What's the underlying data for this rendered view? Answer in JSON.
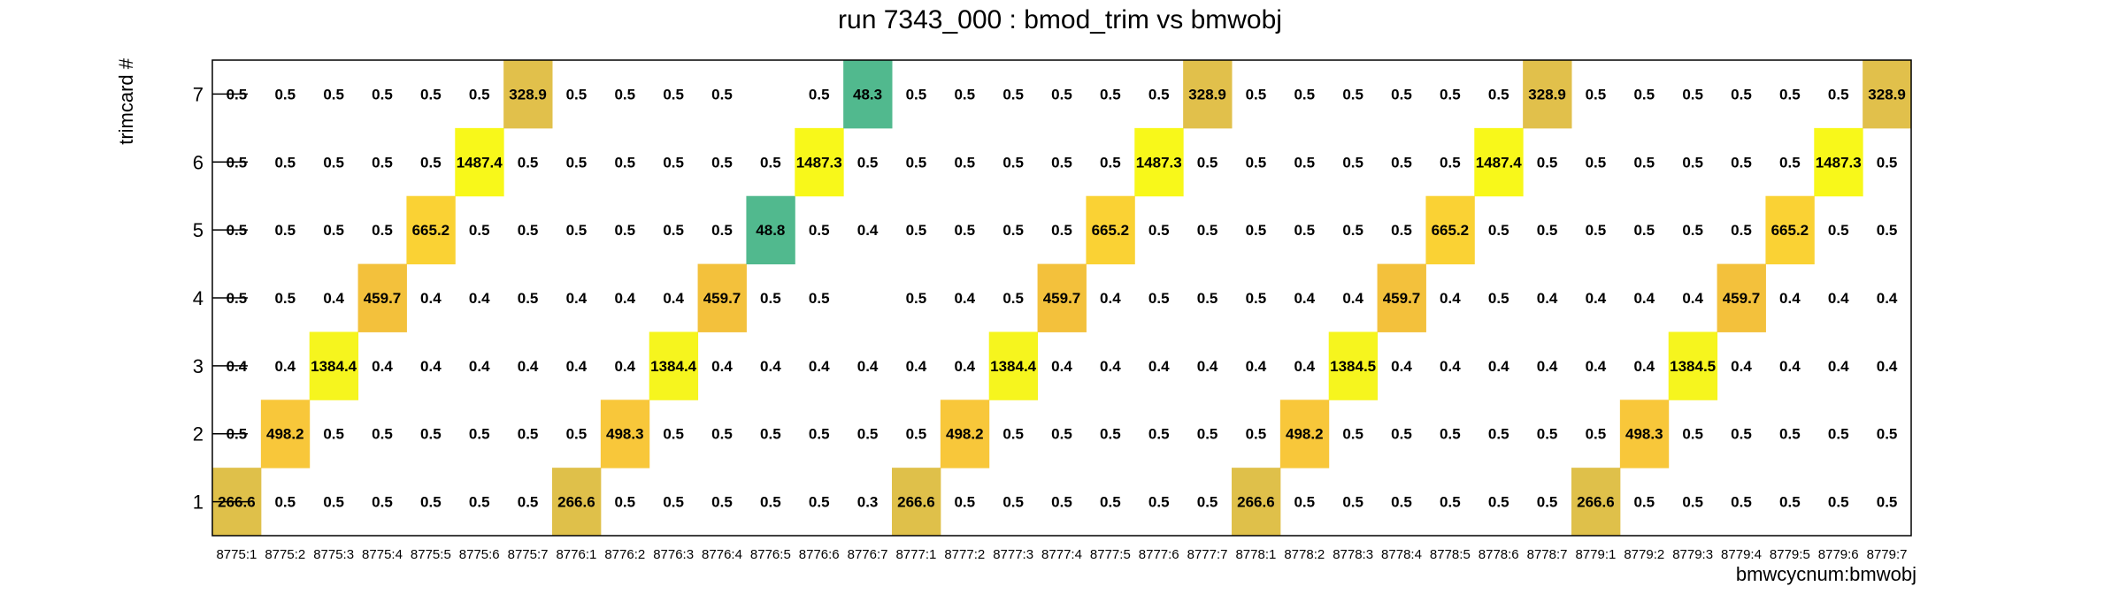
{
  "chart_data": {
    "type": "heatmap",
    "title": "run 7343_000 : bmod_trim vs bmwobj",
    "xlabel": "bmwcycnum:bmwobj",
    "ylabel": "trimcard #",
    "x_categories": [
      "8775:1",
      "8775:2",
      "8775:3",
      "8775:4",
      "8775:5",
      "8775:6",
      "8775:7",
      "8776:1",
      "8776:2",
      "8776:3",
      "8776:4",
      "8776:5",
      "8776:6",
      "8776:7",
      "8777:1",
      "8777:2",
      "8777:3",
      "8777:4",
      "8777:5",
      "8777:6",
      "8777:7",
      "8778:1",
      "8778:2",
      "8778:3",
      "8778:4",
      "8778:5",
      "8778:6",
      "8778:7",
      "8779:1",
      "8779:2",
      "8779:3",
      "8779:4",
      "8779:5",
      "8779:6",
      "8779:7"
    ],
    "y_categories": [
      "1",
      "2",
      "3",
      "4",
      "5",
      "6",
      "7"
    ],
    "values": [
      [
        266.6,
        0.5,
        0.5,
        0.5,
        0.5,
        0.5,
        0.5,
        266.6,
        0.5,
        0.5,
        0.5,
        0.5,
        0.5,
        0.3,
        266.6,
        0.5,
        0.5,
        0.5,
        0.5,
        0.5,
        0.5,
        266.6,
        0.5,
        0.5,
        0.5,
        0.5,
        0.5,
        0.5,
        266.6,
        0.5,
        0.5,
        0.5,
        0.5,
        0.5,
        0.5
      ],
      [
        0.5,
        498.2,
        0.5,
        0.5,
        0.5,
        0.5,
        0.5,
        0.5,
        498.3,
        0.5,
        0.5,
        0.5,
        0.5,
        0.5,
        0.5,
        498.2,
        0.5,
        0.5,
        0.5,
        0.5,
        0.5,
        0.5,
        498.2,
        0.5,
        0.5,
        0.5,
        0.5,
        0.5,
        0.5,
        498.3,
        0.5,
        0.5,
        0.5,
        0.5,
        0.5
      ],
      [
        0.4,
        0.4,
        1384.4,
        0.4,
        0.4,
        0.4,
        0.4,
        0.4,
        0.4,
        1384.4,
        0.4,
        0.4,
        0.4,
        0.4,
        0.4,
        0.4,
        1384.4,
        0.4,
        0.4,
        0.4,
        0.4,
        0.4,
        0.4,
        1384.5,
        0.4,
        0.4,
        0.4,
        0.4,
        0.4,
        0.4,
        1384.5,
        0.4,
        0.4,
        0.4,
        0.4
      ],
      [
        0.5,
        0.5,
        0.4,
        459.7,
        0.4,
        0.4,
        0.5,
        0.4,
        0.4,
        0.4,
        459.7,
        0.5,
        0.5,
        null,
        0.5,
        0.4,
        0.5,
        459.7,
        0.4,
        0.5,
        0.5,
        0.5,
        0.4,
        0.4,
        459.7,
        0.4,
        0.5,
        0.4,
        0.4,
        0.4,
        0.4,
        459.7,
        0.4,
        0.4,
        0.4
      ],
      [
        0.5,
        0.5,
        0.5,
        0.5,
        665.2,
        0.5,
        0.5,
        0.5,
        0.5,
        0.5,
        0.5,
        48.8,
        0.5,
        0.4,
        0.5,
        0.5,
        0.5,
        0.5,
        665.2,
        0.5,
        0.5,
        0.5,
        0.5,
        0.5,
        0.5,
        665.2,
        0.5,
        0.5,
        0.5,
        0.5,
        0.5,
        0.5,
        665.2,
        0.5,
        0.5
      ],
      [
        0.5,
        0.5,
        0.5,
        0.5,
        0.5,
        1487.4,
        0.5,
        0.5,
        0.5,
        0.5,
        0.5,
        0.5,
        1487.3,
        0.5,
        0.5,
        0.5,
        0.5,
        0.5,
        0.5,
        1487.3,
        0.5,
        0.5,
        0.5,
        0.5,
        0.5,
        0.5,
        1487.4,
        0.5,
        0.5,
        0.5,
        0.5,
        0.5,
        0.5,
        1487.3,
        0.5
      ],
      [
        0.5,
        0.5,
        0.5,
        0.5,
        0.5,
        0.5,
        328.9,
        0.5,
        0.5,
        0.5,
        0.5,
        null,
        0.5,
        48.3,
        0.5,
        0.5,
        0.5,
        0.5,
        0.5,
        0.5,
        328.9,
        0.5,
        0.5,
        0.5,
        0.5,
        0.5,
        0.5,
        328.9,
        0.5,
        0.5,
        0.5,
        0.5,
        0.5,
        0.5,
        328.9
      ]
    ],
    "grid": false,
    "legend": "none",
    "colors": {
      "c266": "#dfc04a",
      "c328": "#e1c04b",
      "c459": "#f3c13c",
      "c498": "#f8c73a",
      "c665": "#fad234",
      "c1384": "#f6f51e",
      "c1487": "#f8f81a",
      "c48": "#51b98e"
    }
  }
}
